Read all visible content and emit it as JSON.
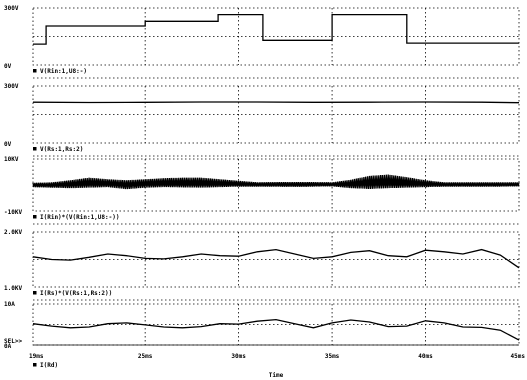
{
  "chart_data": {
    "type": "line",
    "x_axis": {
      "label": "Time",
      "range": [
        19,
        45
      ],
      "unit": "ms",
      "ticks": [
        19,
        25,
        30,
        35,
        40,
        45
      ],
      "tick_labels": [
        "19ms",
        "25ms",
        "30ms",
        "35ms",
        "40ms",
        "45ms"
      ]
    },
    "grid": true,
    "panels": [
      {
        "id": "p1",
        "trace_label": "V(Rin:1,U8:-)",
        "y_range": [
          0,
          300
        ],
        "y_tick_labels": [
          "300V",
          "0V"
        ],
        "series": {
          "kind": "step",
          "x": [
            19,
            19.7,
            19.7,
            25,
            25,
            28.9,
            28.9,
            31.3,
            31.3,
            35,
            35,
            39,
            39,
            45
          ],
          "y": [
            110,
            110,
            205,
            205,
            230,
            230,
            265,
            265,
            130,
            130,
            265,
            265,
            115,
            115
          ]
        }
      },
      {
        "id": "p2",
        "trace_label": "V(Rs:1,Rs:2)",
        "y_range": [
          0,
          300
        ],
        "y_tick_labels": [
          "300V",
          "0V"
        ],
        "series": {
          "kind": "line",
          "x": [
            19,
            22,
            25,
            28,
            31,
            34,
            37,
            40,
            43,
            45
          ],
          "y": [
            215,
            213,
            214,
            216,
            216,
            214,
            215,
            216,
            215,
            212
          ]
        }
      },
      {
        "id": "p3",
        "trace_label": "I(Rin)*(V(Rin:1,U8:-))",
        "y_range": [
          -10,
          10
        ],
        "y_tick_labels": [
          "10KV",
          "-10KV"
        ],
        "series": {
          "kind": "oscillating_band",
          "x": [
            19,
            20,
            21,
            22,
            23,
            24,
            25,
            26,
            27,
            28,
            29,
            30,
            31,
            32,
            33,
            34,
            35,
            36,
            37,
            38,
            39,
            40,
            41,
            42,
            43,
            44,
            45
          ],
          "y_max": [
            0.8,
            1,
            1.8,
            2.8,
            2.2,
            1.8,
            2.2,
            2.6,
            2.8,
            2.8,
            2.2,
            1.6,
            1,
            1.1,
            1.1,
            1.1,
            1,
            2,
            3.5,
            4,
            3,
            1.8,
            1,
            1,
            1,
            1,
            1
          ],
          "y_min": [
            -0.8,
            -1,
            -1.2,
            -1,
            -0.8,
            -1.6,
            -1,
            -0.8,
            -0.9,
            -1,
            -0.8,
            -0.6,
            -0.6,
            -0.6,
            -0.7,
            -0.6,
            -0.5,
            -1.2,
            -1.5,
            -1.2,
            -1,
            -0.8,
            -0.6,
            -0.6,
            -0.6,
            -0.6,
            -0.5
          ]
        }
      },
      {
        "id": "p4",
        "trace_label": "I(Rs)*(V(Rs:1,Rs:2))",
        "y_range": [
          1,
          2
        ],
        "y_tick_labels": [
          "2.0KV",
          "1.0KV"
        ],
        "series": {
          "kind": "line",
          "x": [
            19,
            20,
            21,
            22,
            23,
            24,
            25,
            26,
            27,
            28,
            29,
            30,
            31,
            32,
            33,
            34,
            35,
            36,
            37,
            38,
            39,
            40,
            41,
            42,
            43,
            44,
            45
          ],
          "y": [
            1.55,
            1.5,
            1.49,
            1.54,
            1.6,
            1.57,
            1.52,
            1.51,
            1.55,
            1.6,
            1.57,
            1.56,
            1.64,
            1.68,
            1.6,
            1.52,
            1.55,
            1.63,
            1.66,
            1.57,
            1.55,
            1.67,
            1.64,
            1.6,
            1.68,
            1.58,
            1.35
          ]
        }
      },
      {
        "id": "p5",
        "trace_label": "I(Rd)",
        "y_range": [
          0,
          10
        ],
        "y_tick_labels": [
          "10A",
          "SEL>>",
          "0A"
        ],
        "series": {
          "kind": "line",
          "x": [
            19,
            20,
            21,
            22,
            23,
            24,
            25,
            26,
            27,
            28,
            29,
            30,
            31,
            32,
            33,
            34,
            35,
            36,
            37,
            38,
            39,
            40,
            41,
            42,
            43,
            44,
            45
          ],
          "y": [
            5.2,
            4.6,
            4.2,
            4.4,
            5.2,
            5.4,
            4.9,
            4.4,
            4.2,
            4.5,
            5.2,
            5.1,
            5.8,
            6.2,
            5.2,
            4.2,
            5.4,
            6.1,
            5.6,
            4.5,
            4.6,
            5.9,
            5.4,
            4.4,
            4.3,
            3.6,
            1.2
          ]
        }
      }
    ]
  }
}
